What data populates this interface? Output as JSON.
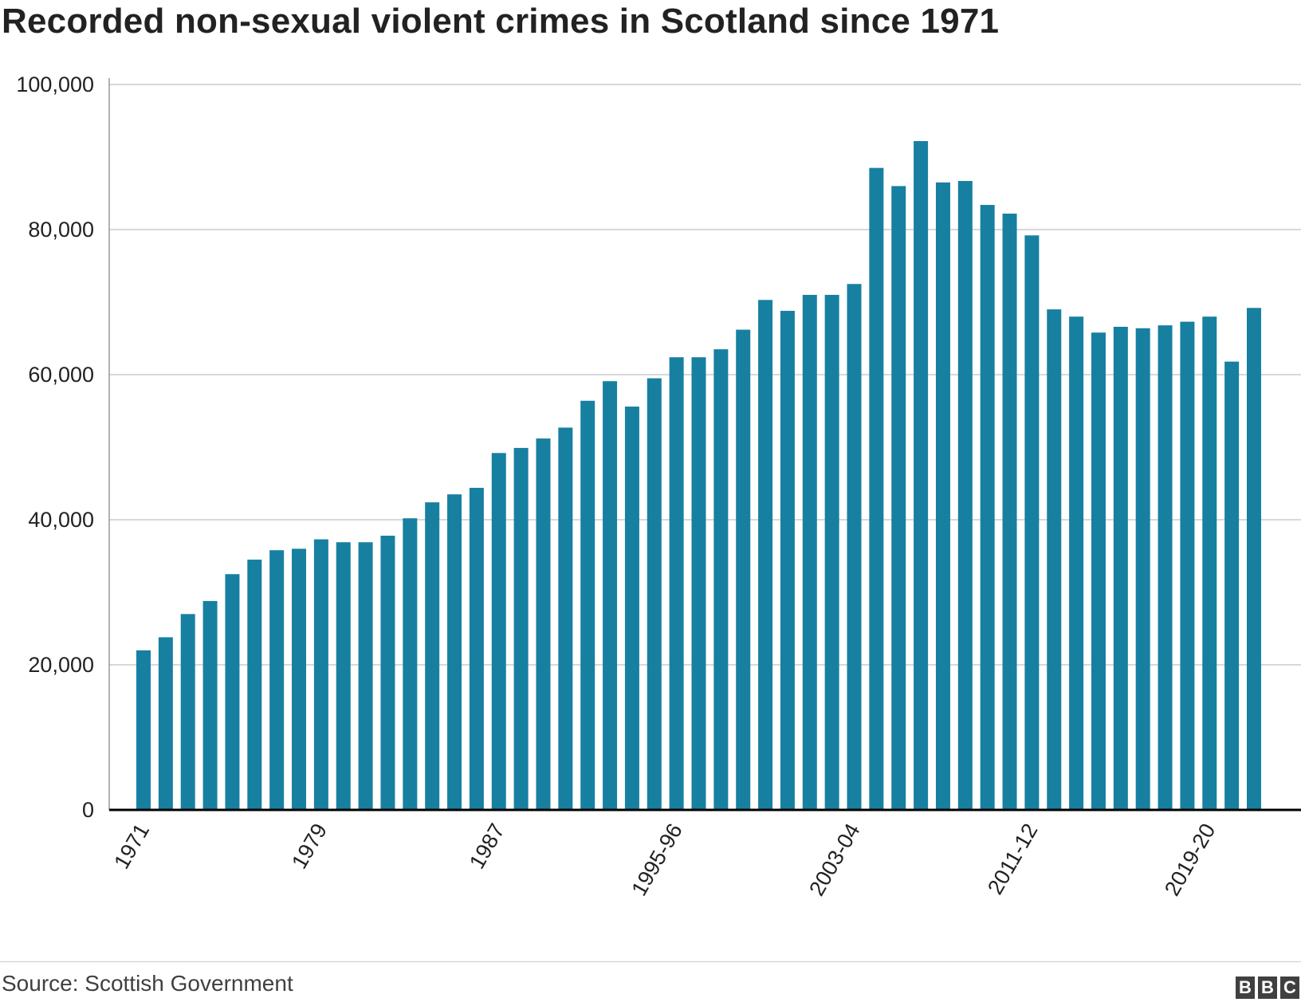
{
  "title": "Recorded non-sexual violent crimes in Scotland since 1971",
  "source": "Source: Scottish Government",
  "logo": [
    "B",
    "B",
    "C"
  ],
  "colors": {
    "bar": "#1780a1",
    "grid": "#cccccc",
    "axis": "#000000"
  },
  "chart_data": {
    "type": "bar",
    "title": "Recorded non-sexual violent crimes in Scotland since 1971",
    "xlabel": "",
    "ylabel": "",
    "ylim": [
      0,
      100000
    ],
    "yticks": [
      0,
      20000,
      40000,
      60000,
      80000,
      100000
    ],
    "ytick_labels": [
      "0",
      "20,000",
      "40,000",
      "60,000",
      "80,000",
      "100,000"
    ],
    "grid": true,
    "xtick_labels": [
      {
        "index": 0,
        "label": "1971"
      },
      {
        "index": 8,
        "label": "1979"
      },
      {
        "index": 16,
        "label": "1987"
      },
      {
        "index": 24,
        "label": "1995-96"
      },
      {
        "index": 32,
        "label": "2003-04"
      },
      {
        "index": 40,
        "label": "2011-12"
      },
      {
        "index": 48,
        "label": "2019-20"
      }
    ],
    "values": [
      22000,
      23800,
      27000,
      28800,
      32500,
      34500,
      35800,
      36000,
      37300,
      36900,
      36900,
      37800,
      40200,
      42400,
      43500,
      44400,
      49200,
      49900,
      51200,
      52700,
      56400,
      59100,
      55600,
      59500,
      62400,
      62400,
      63500,
      66200,
      70300,
      68800,
      71000,
      71000,
      72500,
      88500,
      86000,
      92200,
      86500,
      86700,
      83400,
      82200,
      79200,
      69000,
      68000,
      65800,
      66600,
      66400,
      66800,
      67300,
      68000,
      61800,
      69200
    ]
  }
}
